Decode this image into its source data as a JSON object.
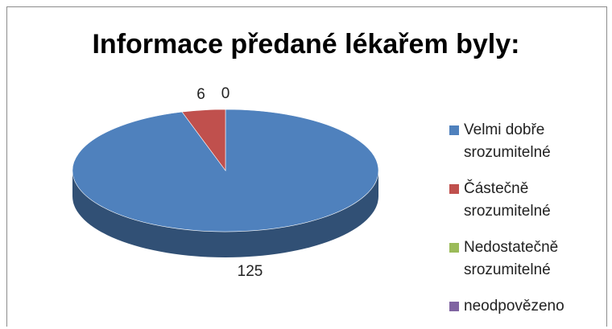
{
  "chart_data": {
    "type": "pie3d",
    "title": "Informace předané lékařem byly:",
    "categories": [
      "Velmi dobře srozumitelné",
      "Částečně srozumitelné",
      "Nedostatečně srozumitelné",
      "neodpovězeno"
    ],
    "values": [
      125,
      6,
      0,
      0
    ],
    "value_labels": [
      "125",
      "6",
      "0",
      null
    ],
    "colors": [
      "#4f81bd",
      "#c0504d",
      "#9bbb59",
      "#8064a2"
    ],
    "legend": "right"
  }
}
